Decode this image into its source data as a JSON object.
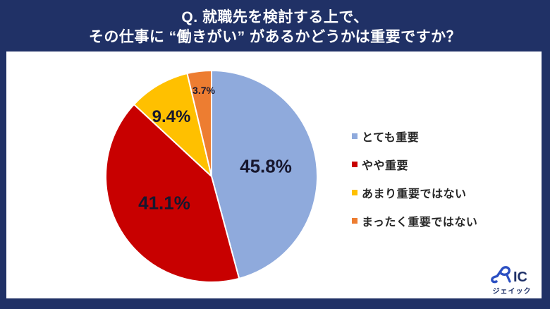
{
  "header": {
    "title_line1": "Q. 就職先を検討する上で、",
    "title_line2": "その仕事に “働きがい” があるかどうかは重要ですか？"
  },
  "chart_data": {
    "type": "pie",
    "title": "Q. 就職先を検討する上で、その仕事に “働きがい” があるかどうかは重要ですか？",
    "start_angle_deg": 0,
    "direction": "clockwise",
    "legend_position": "right",
    "categories": [
      "とても重要",
      "やや重要",
      "あまり重要ではない",
      "まったく重要ではない"
    ],
    "values": [
      45.8,
      41.1,
      9.4,
      3.7
    ],
    "segments": [
      {
        "key": "very-important",
        "label": "とても重要",
        "value": 45.8,
        "display": "45.8%",
        "color": "#8FAADC"
      },
      {
        "key": "somewhat-important",
        "label": "やや重要",
        "value": 41.1,
        "display": "41.1%",
        "color": "#C80000"
      },
      {
        "key": "not-very-important",
        "label": "あまり重要ではない",
        "value": 9.4,
        "display": "9.4%",
        "color": "#FFC000"
      },
      {
        "key": "not-at-all-important",
        "label": "まったく重要ではない",
        "value": 3.7,
        "display": "3.7%",
        "color": "#ED7D31"
      }
    ]
  },
  "colors": {
    "frame_navy": "#203166",
    "canvas_white": "#ffffff",
    "label_text": "#17172e",
    "logo_swoosh_blue": "#2B4FC2",
    "logo_text_navy": "#1F3168"
  },
  "logo": {
    "brand_suffix": "IC",
    "brand_full": "JAIC",
    "brand_sub": "ジェイック"
  }
}
